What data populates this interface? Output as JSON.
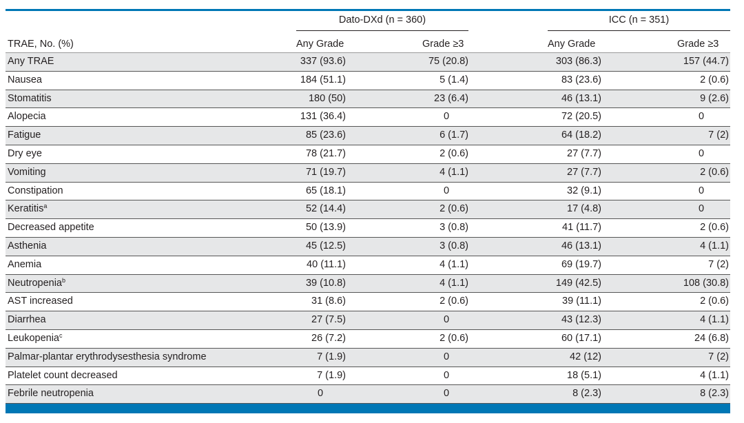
{
  "colors": {
    "accent": "#0077b5",
    "row_alt": "#e6e7e8"
  },
  "table": {
    "groups": [
      {
        "label": "Dato-DXd (n = 360)"
      },
      {
        "label": "ICC (n = 351)"
      }
    ],
    "first_header": "TRAE, No. (%)",
    "subheaders": [
      "Any Grade",
      "Grade ≥3",
      "Any Grade",
      "Grade ≥3"
    ],
    "rows": [
      {
        "label": "Any TRAE",
        "sup": "",
        "values": [
          "337 (93.6)",
          "75 (20.8)",
          "303 (86.3)",
          "157 (44.7)"
        ]
      },
      {
        "label": "Nausea",
        "sup": "",
        "values": [
          "184 (51.1)",
          "5 (1.4)",
          "83 (23.6)",
          "2 (0.6)"
        ]
      },
      {
        "label": "Stomatitis",
        "sup": "",
        "values": [
          "180 (50)",
          "23 (6.4)",
          "46 (13.1)",
          "9 (2.6)"
        ]
      },
      {
        "label": "Alopecia",
        "sup": "",
        "values": [
          "131 (36.4)",
          "0",
          "72 (20.5)",
          "0"
        ]
      },
      {
        "label": "Fatigue",
        "sup": "",
        "values": [
          "85 (23.6)",
          "6 (1.7)",
          "64 (18.2)",
          "7 (2)"
        ]
      },
      {
        "label": "Dry eye",
        "sup": "",
        "values": [
          "78 (21.7)",
          "2 (0.6)",
          "27 (7.7)",
          "0"
        ]
      },
      {
        "label": "Vomiting",
        "sup": "",
        "values": [
          "71 (19.7)",
          "4 (1.1)",
          "27 (7.7)",
          "2 (0.6)"
        ]
      },
      {
        "label": "Constipation",
        "sup": "",
        "values": [
          "65 (18.1)",
          "0",
          "32 (9.1)",
          "0"
        ]
      },
      {
        "label": "Keratitis",
        "sup": "a",
        "values": [
          "52 (14.4)",
          "2 (0.6)",
          "17 (4.8)",
          "0"
        ]
      },
      {
        "label": "Decreased appetite",
        "sup": "",
        "values": [
          "50 (13.9)",
          "3 (0.8)",
          "41 (11.7)",
          "2 (0.6)"
        ]
      },
      {
        "label": "Asthenia",
        "sup": "",
        "values": [
          "45 (12.5)",
          "3 (0.8)",
          "46 (13.1)",
          "4 (1.1)"
        ]
      },
      {
        "label": "Anemia",
        "sup": "",
        "values": [
          "40 (11.1)",
          "4 (1.1)",
          "69 (19.7)",
          "7 (2)"
        ]
      },
      {
        "label": "Neutropenia",
        "sup": "b",
        "values": [
          "39 (10.8)",
          "4 (1.1)",
          "149 (42.5)",
          "108 (30.8)"
        ]
      },
      {
        "label": "AST increased",
        "sup": "",
        "values": [
          "31 (8.6)",
          "2 (0.6)",
          "39 (11.1)",
          "2 (0.6)"
        ]
      },
      {
        "label": "Diarrhea",
        "sup": "",
        "values": [
          "27 (7.5)",
          "0",
          "43 (12.3)",
          "4 (1.1)"
        ]
      },
      {
        "label": "Leukopenia",
        "sup": "c",
        "values": [
          "26 (7.2)",
          "2 (0.6)",
          "60 (17.1)",
          "24 (6.8)"
        ]
      },
      {
        "label": "Palmar-plantar erythrodysesthesia syndrome",
        "sup": "",
        "values": [
          "7 (1.9)",
          "0",
          "42 (12)",
          "7 (2)"
        ]
      },
      {
        "label": "Platelet count decreased",
        "sup": "",
        "values": [
          "7 (1.9)",
          "0",
          "18 (5.1)",
          "4 (1.1)"
        ]
      },
      {
        "label": "Febrile neutropenia",
        "sup": "",
        "values": [
          "0",
          "0",
          "8 (2.3)",
          "8 (2.3)"
        ]
      }
    ]
  }
}
